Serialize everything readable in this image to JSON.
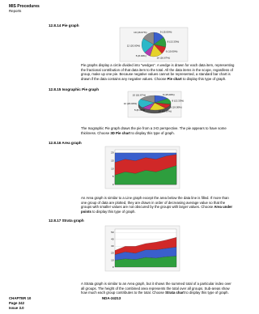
{
  "header": {
    "title": "MIS Procedures",
    "subtitle": "Reports"
  },
  "sections": [
    {
      "heading": "12.8.14 Pie graph",
      "chart": {
        "type": "pie",
        "values": [
          9,
          8,
          6,
          10,
          5,
          12,
          10
        ],
        "labels": [
          "9 (15.00%)",
          "8 (13.33%)",
          "6 (10.00%)",
          "10 (16.67%)",
          "5 (8.33%)",
          "12 (20.00%)",
          "10 (16.67%)"
        ],
        "colors": [
          "#3a5fcd",
          "#2e9e3e",
          "#d02828",
          "#e6d22a",
          "#b03cb0",
          "#2cb8c8",
          "#8a8a8a"
        ]
      },
      "paragraph": {
        "before": "Pie graphs display a circle divided into “wedges”. A wedge is drawn for each data item, representing the fractional contribution of that data item to the total. All the data items in the scope, regardless of group, make up one pie. Because negative values cannot be represented, a standard bar chart is drawn if the data contains any negative values. Choose ",
        "bold": "Pie chart",
        "after": " to display this type of graph."
      }
    },
    {
      "heading": "12.8.15 Isographic Pie graph",
      "chart": {
        "type": "pie3d",
        "values": [
          9,
          8,
          6,
          10,
          5,
          12,
          10
        ],
        "labels": [
          "9 (15.00%)",
          "8 (13.33%)",
          "6 (10.00%)",
          "10 (16.67%)",
          "5 (8.33%)",
          "12 (20.00%)",
          "10 (16.67%)"
        ],
        "colors": [
          "#3a5fcd",
          "#2e9e3e",
          "#d02828",
          "#e6d22a",
          "#b03cb0",
          "#2cb8c8",
          "#8a8a8a"
        ]
      },
      "paragraph": {
        "before": "The Isographic Pie graph draws the pie from a 3-D perspective. The pie appears to have some thickness. Choose ",
        "bold": "3D Pie chart",
        "after": " to display this type of graph."
      }
    },
    {
      "heading": "12.8.16 Area graph",
      "chart": {
        "type": "area",
        "ylim": [
          0,
          22
        ],
        "yticks": [
          0,
          5,
          10,
          15,
          20
        ],
        "series": [
          {
            "color": "#3a5fcd",
            "values": [
              20,
              20,
              20,
              20,
              20,
              20,
              20
            ]
          },
          {
            "color": "#d02828",
            "values": [
              14,
              16,
              15,
              17,
              16,
              18,
              19
            ]
          },
          {
            "color": "#2e9e3e",
            "values": [
              6,
              8,
              7,
              9,
              8,
              10,
              12
            ]
          }
        ]
      },
      "paragraph": {
        "before": "An Area graph is similar to a Line graph except the area below the data line is filled. If more than one group of data are plotted, they are drawn in order of decreasing average value so that the groups with smaller values are not obscured by the groups with larger values. Choose ",
        "bold": "Area under points",
        "after": " to display this type of graph."
      }
    },
    {
      "heading": "12.8.17 Strata graph",
      "chart": {
        "type": "strata",
        "ylim": [
          0,
          55
        ],
        "yticks": [
          0,
          10,
          20,
          30,
          40,
          50
        ],
        "series": [
          {
            "color": "#2e9e3e",
            "values": [
              10,
              12,
              11,
              14,
              13,
              15,
              16
            ]
          },
          {
            "color": "#3a5fcd",
            "values": [
              8,
              10,
              9,
              11,
              12,
              12,
              13
            ]
          },
          {
            "color": "#d02828",
            "values": [
              6,
              8,
              10,
              9,
              11,
              12,
              14
            ]
          }
        ]
      },
      "paragraph": {
        "before": "A Strata graph is similar to an Area graph, but it shows the summed total of a particular index over all groups. The height of the combined area represents the total over all groups. Sub-areas show how much each group contributes to the total. Choose ",
        "bold": "Strata chart",
        "after": " to display this type of graph."
      }
    }
  ],
  "footer": {
    "chapter": "CHAPTER 10",
    "page": "Page 242",
    "issue": "Issue 3.0",
    "doc": "NDA-24213"
  }
}
